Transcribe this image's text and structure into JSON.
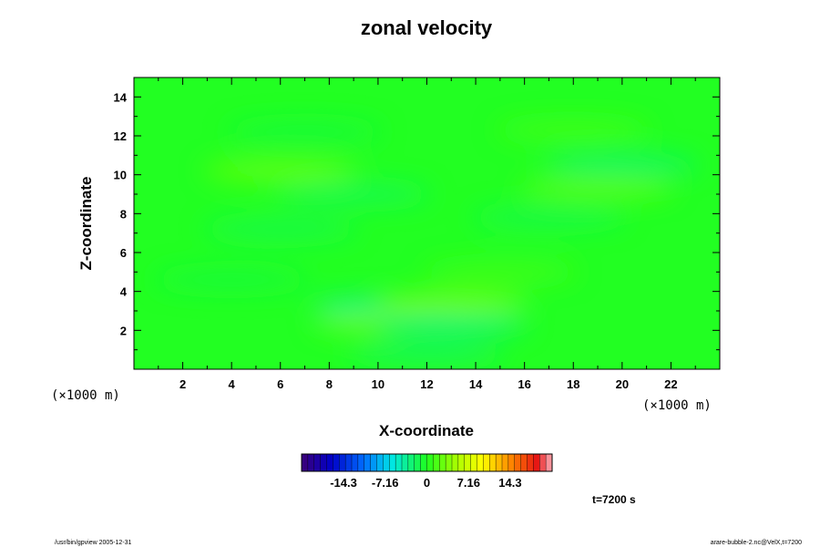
{
  "chart_data": {
    "type": "heatmap",
    "title": "zonal velocity",
    "xlabel": "X-coordinate",
    "ylabel": "Z-coordinate",
    "x_scale_note": "(×1000 m)",
    "z_scale_note": "(×1000 m)",
    "xlim": [
      0,
      24
    ],
    "ylim": [
      0,
      15
    ],
    "x_ticks": [
      "2",
      "4",
      "6",
      "8",
      "10",
      "12",
      "14",
      "16",
      "18",
      "20",
      "22"
    ],
    "y_ticks": [
      "2",
      "4",
      "6",
      "8",
      "10",
      "12",
      "14"
    ],
    "time_label": "t=7200 s",
    "colorbar": {
      "range": [
        -21.5,
        21.5
      ],
      "tick_labels": [
        "-14.3",
        "-7.16",
        "0",
        "7.16",
        "14.3"
      ],
      "tick_values": [
        -14.3,
        -7.16,
        0,
        7.16,
        14.3
      ],
      "colormap": "rainbow"
    },
    "field_description": "near-zero zonal velocity everywhere with weak horizontal layering",
    "features": [
      {
        "x": 6,
        "z": 10.2,
        "value": 3.0
      },
      {
        "x": 19,
        "z": 9.3,
        "value": 2.5
      },
      {
        "x": 20,
        "z": 10.5,
        "value": -2.5
      },
      {
        "x": 9,
        "z": 9.0,
        "value": -1.8
      },
      {
        "x": 6,
        "z": 7.2,
        "value": -1.5
      },
      {
        "x": 17,
        "z": 7.8,
        "value": -1.5
      },
      {
        "x": 18,
        "z": 12.3,
        "value": 1.5
      },
      {
        "x": 7,
        "z": 12.2,
        "value": -1.0
      },
      {
        "x": 10.5,
        "z": 3.2,
        "value": -3.5
      },
      {
        "x": 13,
        "z": 3.4,
        "value": 3.5
      },
      {
        "x": 10.5,
        "z": 2.4,
        "value": 3.0
      },
      {
        "x": 13,
        "z": 2.3,
        "value": -3.0
      },
      {
        "x": 15,
        "z": 5.0,
        "value": 1.5
      },
      {
        "x": 4,
        "z": 4.6,
        "value": -1.0
      },
      {
        "x": 12,
        "z": 0.8,
        "value": -2.0
      }
    ]
  },
  "footer": {
    "left": "/usr/bin/gpview 2005-12-31",
    "right": "arare-bubble-2.nc@VelX,t=7200"
  }
}
